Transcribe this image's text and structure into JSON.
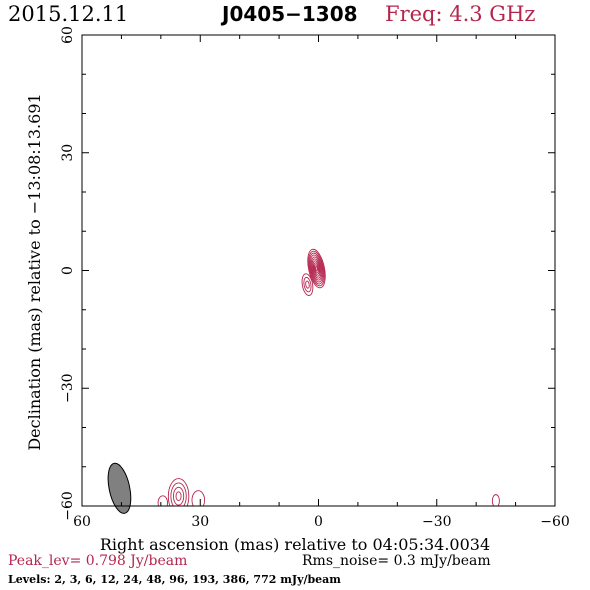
{
  "header": {
    "date": "2015.12.11",
    "source": "J0405−1308",
    "frequency": "Freq: 4.3 GHz"
  },
  "footer": {
    "peak": "Peak_lev=  0.798 Jy/beam",
    "rms": "Rms_noise=  0.3 mJy/beam",
    "levels": "Levels:   2,   3,   6,  12,  24,  48,  96, 193, 386, 772 mJy/beam"
  },
  "colors": {
    "contour": "#b5264e",
    "beam": "#808080",
    "axis": "#000000",
    "frequency": "#b5264e",
    "peak": "#b5264e"
  },
  "chart_data": {
    "type": "contour",
    "title": "J0405−1308",
    "xlabel": "Right ascension (mas) relative to 04:05:34.0034",
    "ylabel": "Declination (mas) relative to −13:08:13.691",
    "xlim": [
      60,
      -60
    ],
    "ylim": [
      -60,
      60
    ],
    "x_ticks": [
      60,
      30,
      0,
      -30,
      -60
    ],
    "y_ticks": [
      60,
      30,
      0,
      -30,
      -60
    ],
    "x_tick_labels": [
      "60",
      "30",
      "0",
      "−30",
      "−60"
    ],
    "y_tick_labels": [
      "60",
      "30",
      "0",
      "−30",
      "−60"
    ],
    "grid": false,
    "contour_levels_mJy": [
      2,
      3,
      6,
      12,
      24,
      48,
      96,
      193,
      386,
      772
    ],
    "peak_Jy_per_beam": 0.798,
    "rms_noise_mJy_per_beam": 0.3,
    "beam": {
      "x": 50.5,
      "y": -55.5,
      "major_mas": 6.5,
      "minor_mas": 2.6,
      "pa_deg": -12
    },
    "components": [
      {
        "name": "core",
        "x": 0.5,
        "y": 0.5,
        "semi_major_mas": 5,
        "semi_minor_mas": 2.0,
        "pa_deg": -12,
        "levels": 10
      },
      {
        "name": "knot",
        "x": 2.8,
        "y": -3.6,
        "semi_major_mas": 2.8,
        "semi_minor_mas": 1.3,
        "pa_deg": -10,
        "levels": 3
      },
      {
        "name": "edge-feature-left",
        "x": 35.5,
        "y": -57.5,
        "semi_major_mas": 4.5,
        "semi_minor_mas": 2.6,
        "pa_deg": 0,
        "levels": 4
      },
      {
        "name": "edge-feature-mid",
        "x": 30.5,
        "y": -58.5,
        "semi_major_mas": 2.4,
        "semi_minor_mas": 1.6,
        "pa_deg": 0,
        "levels": 1
      },
      {
        "name": "edge-feature-far",
        "x": 39.5,
        "y": -59.2,
        "semi_major_mas": 1.8,
        "semi_minor_mas": 1.2,
        "pa_deg": 0,
        "levels": 1
      },
      {
        "name": "edge-feature-right",
        "x": -45,
        "y": -58.7,
        "semi_major_mas": 1.6,
        "semi_minor_mas": 0.9,
        "pa_deg": 0,
        "levels": 1
      }
    ]
  }
}
